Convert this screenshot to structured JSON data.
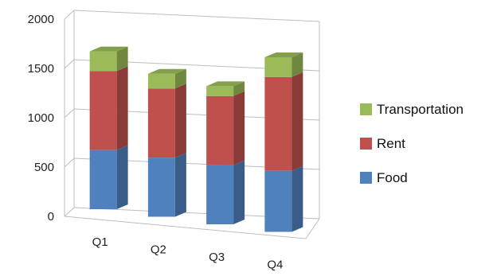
{
  "chart_data": {
    "type": "bar",
    "stacked": true,
    "three_d": true,
    "categories": [
      "Q1",
      "Q2",
      "Q3",
      "Q4"
    ],
    "series": [
      {
        "name": "Food",
        "values": [
          600,
          600,
          600,
          620
        ],
        "color": "#4F81BD"
      },
      {
        "name": "Rent",
        "values": [
          800,
          700,
          700,
          950
        ],
        "color": "#C0504D"
      },
      {
        "name": "Transportation",
        "values": [
          200,
          150,
          100,
          200
        ],
        "color": "#9BBB59"
      }
    ],
    "y_ticks": [
      "0",
      "500",
      "1000",
      "1500",
      "2000"
    ],
    "ylim": [
      0,
      2000
    ],
    "grid": true,
    "legend_position": "right",
    "legend_order": [
      "Transportation",
      "Rent",
      "Food"
    ]
  }
}
